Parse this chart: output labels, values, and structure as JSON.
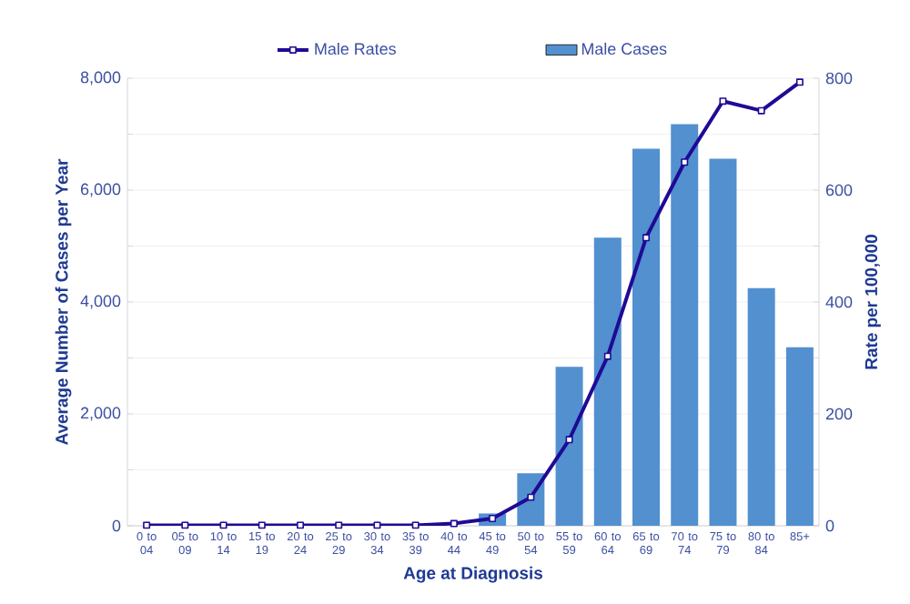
{
  "chart_data": {
    "type": "bar",
    "xlabel": "Age at Diagnosis",
    "ylabel": "Average Number of Cases per Year",
    "y2label": "Rate per 100,000",
    "categories": [
      "0 to 04",
      "05 to 09",
      "10 to 14",
      "15 to 19",
      "20 to 24",
      "25 to 29",
      "30 to 34",
      "35 to 39",
      "40 to 44",
      "45 to 49",
      "50 to 54",
      "55 to 59",
      "60 to 64",
      "65 to 69",
      "70 to 74",
      "75 to 79",
      "80 to 84",
      "85+"
    ],
    "series": [
      {
        "name": "Male Cases",
        "color": "#5290d0",
        "values": [
          null,
          null,
          null,
          null,
          null,
          null,
          null,
          null,
          null,
          220,
          940,
          2840,
          5150,
          6740,
          7180,
          6560,
          4250,
          3190
        ]
      },
      {
        "name": "Male Rates",
        "type": "line",
        "axis": "y2",
        "color": "#1f0a96",
        "marker": "square",
        "values": [
          1,
          1,
          1,
          1,
          1,
          1,
          1,
          1,
          4,
          13,
          51,
          154,
          303,
          515,
          650,
          759,
          742,
          793
        ]
      }
    ],
    "ylim": [
      0,
      8000
    ],
    "yticks": [
      {
        "value": 0,
        "label": "0"
      },
      {
        "value": 1000,
        "label": null
      },
      {
        "value": 2000,
        "label": "2,000"
      },
      {
        "value": 3000,
        "label": null
      },
      {
        "value": 4000,
        "label": "4,000"
      },
      {
        "value": 5000,
        "label": null
      },
      {
        "value": 6000,
        "label": "6,000"
      },
      {
        "value": 7000,
        "label": null
      },
      {
        "value": 8000,
        "label": "8,000"
      }
    ],
    "y2lim": [
      0,
      800
    ],
    "y2ticks": [
      0,
      {
        "value": 100,
        "label": null
      },
      200,
      {
        "value": 300,
        "label": null
      },
      400,
      {
        "value": 500,
        "label": null
      },
      600,
      {
        "value": 700,
        "label": null
      },
      800
    ],
    "grid": "y",
    "legend": "top"
  }
}
